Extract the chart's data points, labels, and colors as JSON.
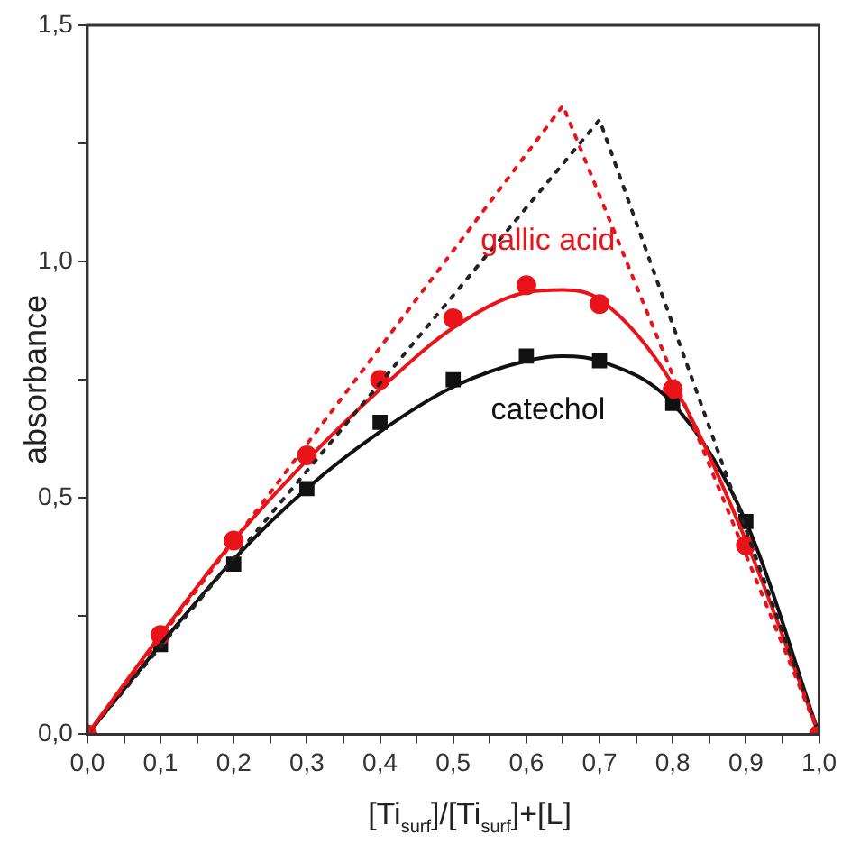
{
  "chart_data": {
    "type": "scatter",
    "xlabel": "[Ti$_{surf}$]/[Ti$_{surf}$]+[L]",
    "ylabel": "absorbance",
    "xlim": [
      0,
      1
    ],
    "ylim": [
      0,
      1.5
    ],
    "xticks": [
      {
        "value": 0,
        "label": "0,0"
      },
      {
        "value": 0.05,
        "label": null
      },
      {
        "value": 0.1,
        "label": "0,1"
      },
      {
        "value": 0.15,
        "label": null
      },
      {
        "value": 0.2,
        "label": "0,2"
      },
      {
        "value": 0.25,
        "label": null
      },
      {
        "value": 0.3,
        "label": "0,3"
      },
      {
        "value": 0.35,
        "label": null
      },
      {
        "value": 0.4,
        "label": "0,4"
      },
      {
        "value": 0.45,
        "label": null
      },
      {
        "value": 0.5,
        "label": "0,5"
      },
      {
        "value": 0.55,
        "label": null
      },
      {
        "value": 0.6,
        "label": "0,6"
      },
      {
        "value": 0.65,
        "label": null
      },
      {
        "value": 0.7,
        "label": "0,7"
      },
      {
        "value": 0.75,
        "label": null
      },
      {
        "value": 0.8,
        "label": "0,8"
      },
      {
        "value": 0.85,
        "label": null
      },
      {
        "value": 0.9,
        "label": "0,9"
      },
      {
        "value": 0.95,
        "label": null
      },
      {
        "value": 1,
        "label": "1,0"
      }
    ],
    "yticks": [
      {
        "value": 0,
        "label": "0,0"
      },
      {
        "value": 0.25,
        "label": null
      },
      {
        "value": 0.5,
        "label": "0,5"
      },
      {
        "value": 0.75,
        "label": null
      },
      {
        "value": 1,
        "label": "1,0"
      },
      {
        "value": 1.25,
        "label": null
      },
      {
        "value": 1.5,
        "label": "1,5"
      }
    ],
    "grid": false,
    "legend": false,
    "series": [
      {
        "type": "line",
        "color": "#e8141a",
        "line_style": "dotted",
        "marker": "none",
        "x": [
          0,
          0.65,
          1
        ],
        "values": [
          0,
          1.33,
          0
        ]
      },
      {
        "type": "line",
        "color": "#222222",
        "line_style": "dotted",
        "marker": "none",
        "x": [
          0,
          0.7,
          1
        ],
        "values": [
          0,
          1.3,
          0
        ]
      },
      {
        "type": "line",
        "color": "#e8141a",
        "line_style": "solid",
        "marker": "none",
        "x": [
          0,
          0.1,
          0.2,
          0.3,
          0.4,
          0.5,
          0.6,
          0.65,
          0.7,
          0.8,
          0.9,
          1
        ],
        "values": [
          0,
          0.21,
          0.41,
          0.58,
          0.73,
          0.86,
          0.935,
          0.94,
          0.92,
          0.74,
          0.41,
          0
        ]
      },
      {
        "type": "line",
        "color": "#111111",
        "line_style": "solid",
        "marker": "none",
        "x": [
          0,
          0.1,
          0.2,
          0.3,
          0.4,
          0.5,
          0.6,
          0.65,
          0.7,
          0.8,
          0.9,
          1
        ],
        "values": [
          0,
          0.19,
          0.37,
          0.52,
          0.64,
          0.735,
          0.79,
          0.8,
          0.79,
          0.7,
          0.45,
          0
        ]
      },
      {
        "name": "gallic acid",
        "color": "#e8141a",
        "marker": "circle",
        "x": [
          0,
          0.1,
          0.2,
          0.3,
          0.4,
          0.5,
          0.6,
          0.7,
          0.8,
          0.9,
          1
        ],
        "values": [
          0,
          0.21,
          0.41,
          0.59,
          0.75,
          0.88,
          0.95,
          0.91,
          0.73,
          0.4,
          0
        ]
      },
      {
        "name": "catechol",
        "color": "#111111",
        "marker": "square",
        "x": [
          0.1,
          0.2,
          0.3,
          0.4,
          0.5,
          0.6,
          0.7,
          0.8,
          0.9
        ],
        "values": [
          0.19,
          0.36,
          0.52,
          0.66,
          0.75,
          0.8,
          0.79,
          0.7,
          0.45
        ]
      }
    ]
  }
}
